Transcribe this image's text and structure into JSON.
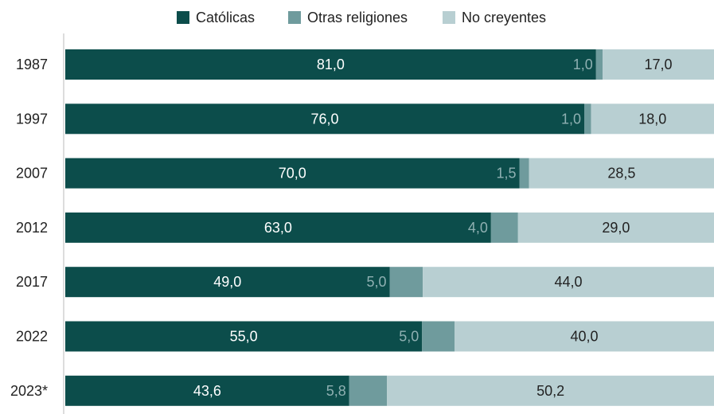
{
  "chart_data": {
    "type": "stacked-bar",
    "orientation": "horizontal",
    "stacked": "percent",
    "categories": [
      "1987",
      "1997",
      "2007",
      "2012",
      "2017",
      "2022",
      "2023*"
    ],
    "series": [
      {
        "name": "Católicas",
        "color": "#0c4d4b",
        "values": [
          81,
          76,
          70,
          63,
          49,
          55,
          43.6
        ],
        "value_labels": [
          "81,0",
          "76,0",
          "70,0",
          "63,0",
          "49,0",
          "55,0",
          "43,6"
        ]
      },
      {
        "name": "Otras religiones",
        "color": "#6f9b9d",
        "values": [
          1,
          1,
          1.5,
          4,
          5,
          5,
          5.8
        ],
        "value_labels": [
          "1,0",
          "1,0",
          "1,5",
          "4,0",
          "5,0",
          "5,0",
          "5,8"
        ]
      },
      {
        "name": "No creyentes",
        "color": "#b8cfd2",
        "values": [
          17,
          18,
          28.5,
          29,
          44,
          40,
          50.2
        ],
        "value_labels": [
          "17,0",
          "18,0",
          "28,5",
          "29,0",
          "44,0",
          "40,0",
          "50,2"
        ]
      }
    ],
    "legend": "top"
  }
}
